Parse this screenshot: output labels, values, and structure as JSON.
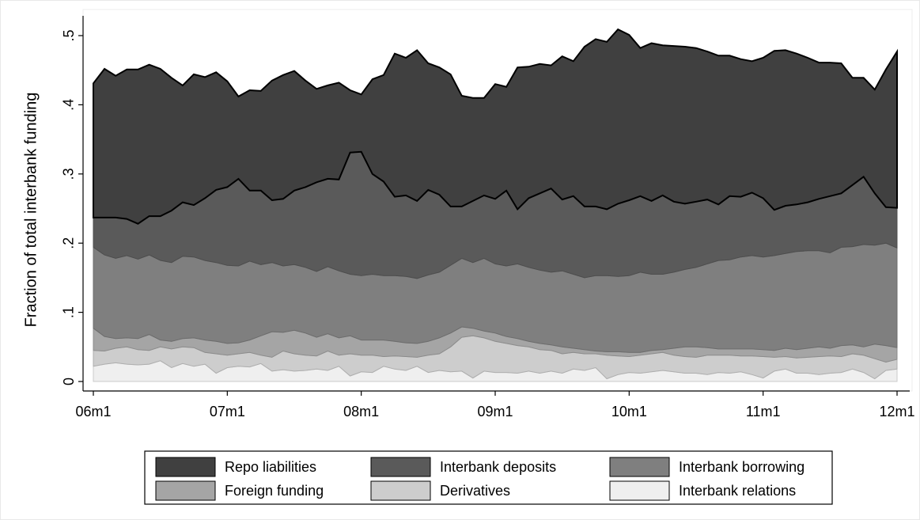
{
  "chart_data": {
    "type": "stacked-area",
    "ylabel": "Fraction of total interbank funding",
    "categories": [
      "06m1",
      null,
      null,
      null,
      null,
      null,
      null,
      null,
      null,
      null,
      null,
      null,
      "07m1",
      null,
      null,
      null,
      null,
      null,
      null,
      null,
      null,
      null,
      null,
      null,
      "08m1",
      null,
      null,
      null,
      null,
      null,
      null,
      null,
      null,
      null,
      null,
      null,
      "09m1",
      null,
      null,
      null,
      null,
      null,
      null,
      null,
      null,
      null,
      null,
      null,
      "10m1",
      null,
      null,
      null,
      null,
      null,
      null,
      null,
      null,
      null,
      null,
      null,
      "11m1",
      null,
      null,
      null,
      null,
      null,
      null,
      null,
      null,
      null,
      null,
      null,
      "12m1"
    ],
    "ylim": [
      0,
      0.5
    ],
    "yticks": [
      0,
      {
        "value": 0.1,
        "label": ".1"
      },
      {
        "value": 0.2,
        "label": ".2"
      },
      {
        "value": 0.3,
        "label": ".3"
      },
      {
        "value": 0.4,
        "label": ".4"
      },
      {
        "value": 0.5,
        "label": ".5"
      }
    ],
    "legend": "bottom",
    "series": [
      {
        "name": "Repo liabilities",
        "color": "#404040",
        "values": [
          0.194,
          0.215,
          0.205,
          0.216,
          0.223,
          0.219,
          0.213,
          0.192,
          0.169,
          0.189,
          0.175,
          0.17,
          0.153,
          0.119,
          0.145,
          0.144,
          0.173,
          0.179,
          0.173,
          0.154,
          0.135,
          0.135,
          0.14,
          0.09,
          0.083,
          0.137,
          0.154,
          0.207,
          0.199,
          0.218,
          0.183,
          0.184,
          0.191,
          0.16,
          0.149,
          0.141,
          0.166,
          0.15,
          0.205,
          0.19,
          0.187,
          0.178,
          0.207,
          0.195,
          0.231,
          0.242,
          0.242,
          0.252,
          0.239,
          0.214,
          0.228,
          0.217,
          0.225,
          0.227,
          0.222,
          0.214,
          0.215,
          0.203,
          0.199,
          0.19,
          0.203,
          0.23,
          0.225,
          0.218,
          0.209,
          0.197,
          0.193,
          0.188,
          0.155,
          0.143,
          0.15,
          0.199,
          0.226
        ]
      },
      {
        "name": "Interbank deposits",
        "color": "#5a5a5a",
        "values": [
          0.043,
          0.054,
          0.059,
          0.053,
          0.051,
          0.056,
          0.064,
          0.075,
          0.078,
          0.075,
          0.09,
          0.105,
          0.113,
          0.126,
          0.102,
          0.107,
          0.09,
          0.097,
          0.107,
          0.116,
          0.129,
          0.127,
          0.132,
          0.176,
          0.179,
          0.145,
          0.136,
          0.114,
          0.117,
          0.112,
          0.123,
          0.112,
          0.085,
          0.075,
          0.089,
          0.091,
          0.094,
          0.109,
          0.079,
          0.1,
          0.111,
          0.121,
          0.103,
          0.113,
          0.103,
          0.1,
          0.096,
          0.105,
          0.109,
          0.11,
          0.106,
          0.114,
          0.102,
          0.095,
          0.095,
          0.093,
          0.081,
          0.092,
          0.087,
          0.091,
          0.085,
          0.066,
          0.069,
          0.068,
          0.07,
          0.075,
          0.082,
          0.078,
          0.089,
          0.098,
          0.075,
          0.052,
          0.058
        ]
      },
      {
        "name": "Interbank borrowing",
        "color": "#7f7f7f",
        "values": [
          0.117,
          0.118,
          0.116,
          0.119,
          0.115,
          0.115,
          0.115,
          0.114,
          0.119,
          0.117,
          0.115,
          0.114,
          0.113,
          0.111,
          0.114,
          0.103,
          0.1,
          0.096,
          0.095,
          0.095,
          0.095,
          0.097,
          0.097,
          0.089,
          0.093,
          0.095,
          0.093,
          0.095,
          0.096,
          0.094,
          0.096,
          0.095,
          0.098,
          0.099,
          0.095,
          0.105,
          0.1,
          0.102,
          0.108,
          0.107,
          0.106,
          0.105,
          0.11,
          0.107,
          0.104,
          0.109,
          0.11,
          0.109,
          0.111,
          0.116,
          0.11,
          0.109,
          0.11,
          0.112,
          0.115,
          0.121,
          0.128,
          0.129,
          0.133,
          0.135,
          0.134,
          0.137,
          0.137,
          0.142,
          0.141,
          0.139,
          0.138,
          0.142,
          0.142,
          0.148,
          0.143,
          0.148,
          0.144
        ]
      },
      {
        "name": "Foreign funding",
        "color": "#a5a5a5",
        "values": [
          0.032,
          0.021,
          0.014,
          0.013,
          0.016,
          0.023,
          0.01,
          0.011,
          0.012,
          0.014,
          0.018,
          0.018,
          0.017,
          0.016,
          0.018,
          0.028,
          0.037,
          0.027,
          0.034,
          0.032,
          0.027,
          0.025,
          0.025,
          0.026,
          0.022,
          0.022,
          0.024,
          0.021,
          0.02,
          0.02,
          0.02,
          0.023,
          0.02,
          0.015,
          0.011,
          0.01,
          0.012,
          0.01,
          0.01,
          0.008,
          0.009,
          0.008,
          0.01,
          0.006,
          0.006,
          0.004,
          0.005,
          0.006,
          0.006,
          0.004,
          0.005,
          0.004,
          0.01,
          0.014,
          0.015,
          0.011,
          0.009,
          0.009,
          0.01,
          0.01,
          0.01,
          0.01,
          0.012,
          0.012,
          0.013,
          0.014,
          0.011,
          0.016,
          0.013,
          0.012,
          0.021,
          0.024,
          0.017
        ]
      },
      {
        "name": "Derivatives",
        "color": "#cdcdcd",
        "values": [
          0.023,
          0.019,
          0.021,
          0.025,
          0.022,
          0.02,
          0.02,
          0.027,
          0.024,
          0.027,
          0.017,
          0.028,
          0.018,
          0.018,
          0.021,
          0.012,
          0.02,
          0.027,
          0.025,
          0.022,
          0.019,
          0.028,
          0.016,
          0.032,
          0.024,
          0.025,
          0.014,
          0.019,
          0.02,
          0.013,
          0.025,
          0.024,
          0.036,
          0.049,
          0.061,
          0.048,
          0.045,
          0.042,
          0.04,
          0.035,
          0.034,
          0.03,
          0.028,
          0.024,
          0.024,
          0.02,
          0.034,
          0.027,
          0.023,
          0.026,
          0.026,
          0.026,
          0.024,
          0.024,
          0.023,
          0.028,
          0.025,
          0.026,
          0.023,
          0.027,
          0.031,
          0.02,
          0.018,
          0.022,
          0.023,
          0.026,
          0.025,
          0.023,
          0.022,
          0.025,
          0.029,
          0.012,
          0.014
        ]
      },
      {
        "name": "Interbank relations",
        "color": "#efefef",
        "values": [
          0.022,
          0.025,
          0.027,
          0.025,
          0.024,
          0.025,
          0.03,
          0.02,
          0.026,
          0.022,
          0.025,
          0.012,
          0.02,
          0.022,
          0.021,
          0.026,
          0.015,
          0.017,
          0.015,
          0.016,
          0.018,
          0.016,
          0.022,
          0.008,
          0.014,
          0.013,
          0.022,
          0.018,
          0.016,
          0.022,
          0.013,
          0.016,
          0.014,
          0.015,
          0.005,
          0.015,
          0.013,
          0.013,
          0.012,
          0.015,
          0.012,
          0.015,
          0.012,
          0.018,
          0.016,
          0.02,
          0.004,
          0.01,
          0.013,
          0.012,
          0.014,
          0.016,
          0.014,
          0.012,
          0.012,
          0.01,
          0.013,
          0.012,
          0.014,
          0.01,
          0.005,
          0.015,
          0.018,
          0.012,
          0.012,
          0.01,
          0.012,
          0.013,
          0.018,
          0.013,
          0.004,
          0.016,
          0.018
        ]
      }
    ]
  }
}
